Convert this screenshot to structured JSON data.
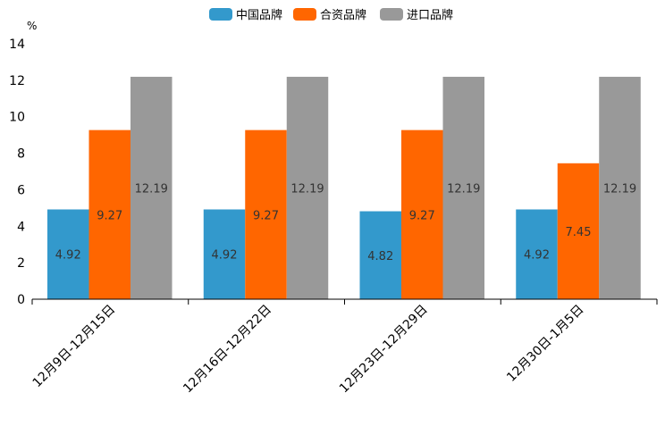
{
  "chart_data": {
    "type": "bar",
    "title": "",
    "xlabel": "",
    "ylabel": "%",
    "ylim": [
      0,
      14
    ],
    "yticks": [
      0,
      2,
      4,
      6,
      8,
      10,
      12,
      14
    ],
    "categories": [
      "12月9日-12月15日",
      "12月16日-12月22日",
      "12月23日-12月29日",
      "12月30日-1月5日"
    ],
    "series": [
      {
        "name": "中国品牌",
        "color": "#3399cc",
        "values": [
          4.92,
          4.92,
          4.82,
          4.92
        ]
      },
      {
        "name": "合资品牌",
        "color": "#ff6600",
        "values": [
          9.27,
          9.27,
          9.27,
          7.45
        ]
      },
      {
        "name": "进口品牌",
        "color": "#999999",
        "values": [
          12.19,
          12.19,
          12.19,
          12.19
        ]
      }
    ],
    "legend_position": "top-center",
    "grid": false
  }
}
